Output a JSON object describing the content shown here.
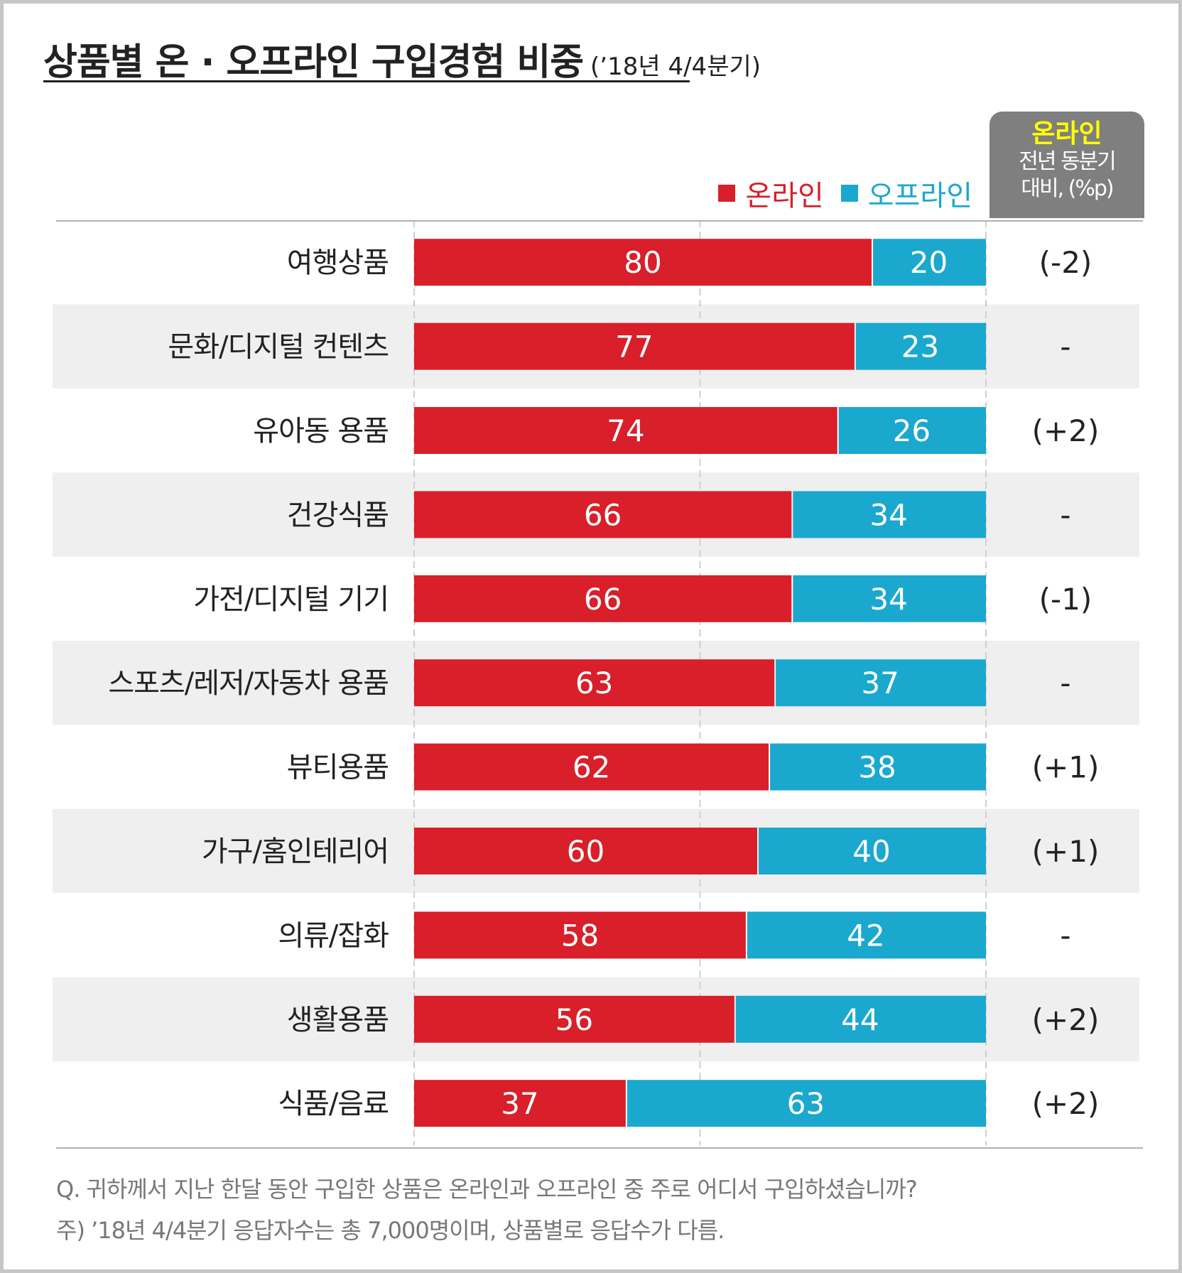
{
  "title": "상품별 온 · 오프라인 구입경험 비중",
  "subtitle": "(’18년 4/4분기)",
  "legend": {
    "online": "온라인",
    "offline": "오프라인"
  },
  "change_header": {
    "title": "온라인",
    "sub1": "전년 동분기",
    "sub2": "대비, (%p)"
  },
  "colors": {
    "online": "#d81f2a",
    "offline": "#1aa8cf",
    "band": "#efefef",
    "header_bg": "#7f7f7f",
    "header_title": "#ffff00"
  },
  "chart_data": {
    "type": "bar",
    "stacked": true,
    "orientation": "horizontal",
    "xlim": [
      0,
      100
    ],
    "categories": [
      "여행상품",
      "문화/디지털 컨텐츠",
      "유아동 용품",
      "건강식품",
      "가전/디지털 기기",
      "스포츠/레저/자동차 용품",
      "뷰티용품",
      "가구/홈인테리어",
      "의류/잡화",
      "생활용품",
      "식품/음료"
    ],
    "series": [
      {
        "name": "온라인",
        "values": [
          80,
          77,
          74,
          66,
          66,
          63,
          62,
          60,
          58,
          56,
          37
        ]
      },
      {
        "name": "오프라인",
        "values": [
          20,
          23,
          26,
          34,
          34,
          37,
          38,
          40,
          42,
          44,
          63
        ]
      }
    ],
    "online_change_yoy": [
      "(-2)",
      "-",
      "(+2)",
      "-",
      "(-1)",
      "-",
      "(+1)",
      "(+1)",
      "-",
      "(+2)",
      "(+2)"
    ]
  },
  "footnote": {
    "question": "Q. 귀하께서 지난 한달 동안 구입한 상품은 온라인과 오프라인 중 주로 어디서 구입하셨습니까?",
    "note": "주) ’18년 4/4분기 응답자수는 총 7,000명이며, 상품별로 응답수가 다름."
  }
}
